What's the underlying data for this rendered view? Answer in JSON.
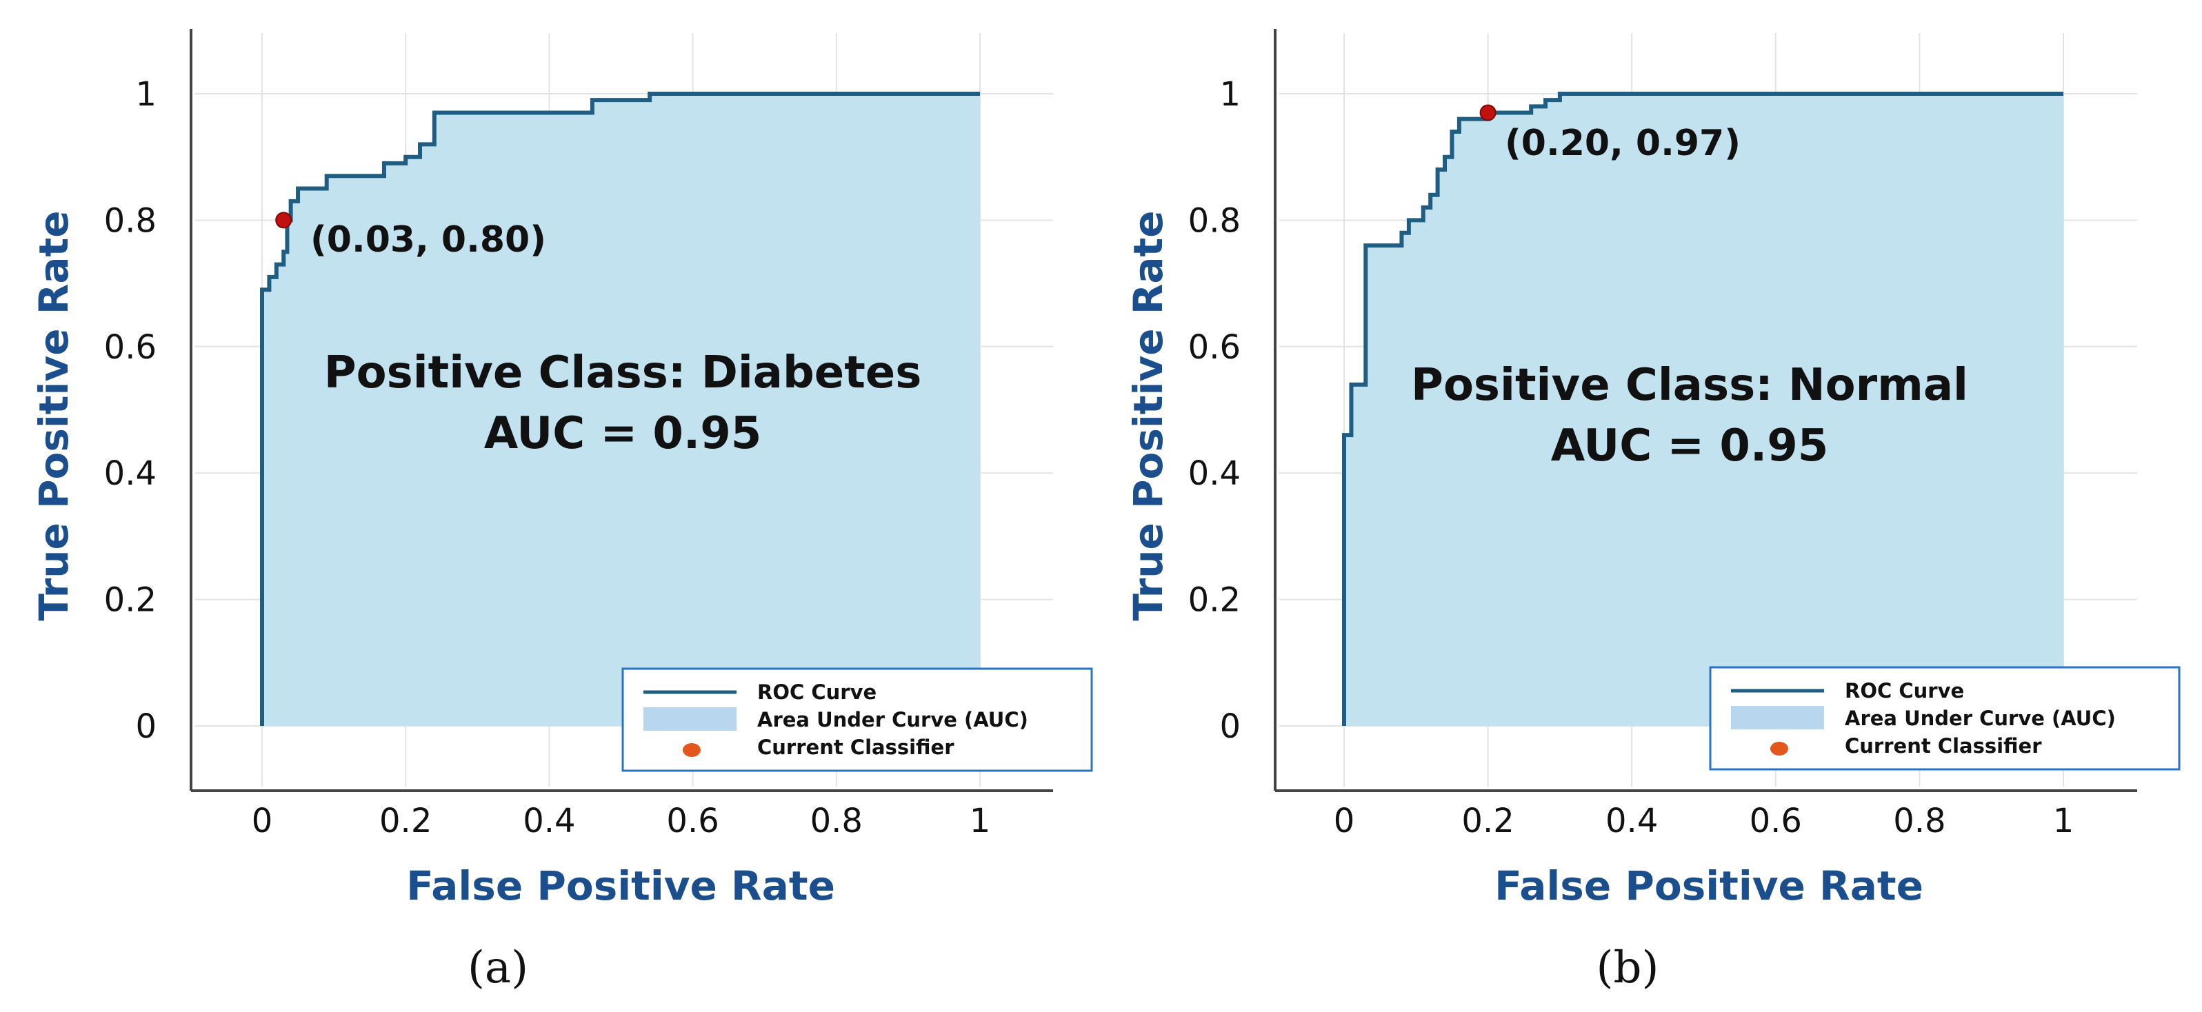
{
  "colors": {
    "curve": "#1f5e82",
    "fill": "#c3e2ef",
    "point": "#c0110e",
    "axis_label": "#1b4e8c",
    "legend_border": "#2a74c4",
    "legend_fill_swatch": "#b8d7ee",
    "legend_point": "#e4571c"
  },
  "legend": {
    "roc": "ROC Curve",
    "auc": "Area Under Curve (AUC)",
    "classifier": "Current Classifier"
  },
  "chart_data": [
    {
      "type": "area",
      "panel": "(a)",
      "title": "Positive Class: Diabetes",
      "auc_label": "AUC = 0.95",
      "xlabel": "False Positive Rate",
      "ylabel": "True Positive Rate",
      "xlim": [
        -0.1,
        1.1
      ],
      "ylim": [
        -0.1,
        1.1
      ],
      "xticks": [
        0,
        0.2,
        0.4,
        0.6,
        0.8,
        1
      ],
      "xtick_labels": [
        "0",
        "0.2",
        "0.4",
        "0.6",
        "0.8",
        "1"
      ],
      "yticks": [
        0,
        0.2,
        0.4,
        0.6,
        0.8,
        1
      ],
      "ytick_labels": [
        "0",
        "0.2",
        "0.4",
        "0.6",
        "0.8",
        "1"
      ],
      "series": [
        {
          "name": "ROC Curve",
          "x": [
            0,
            0,
            0.01,
            0.01,
            0.02,
            0.02,
            0.03,
            0.03,
            0.035,
            0.035,
            0.04,
            0.04,
            0.05,
            0.05,
            0.09,
            0.09,
            0.13,
            0.13,
            0.17,
            0.17,
            0.2,
            0.2,
            0.22,
            0.22,
            0.24,
            0.24,
            0.46,
            0.46,
            0.54,
            0.54,
            1
          ],
          "y": [
            0,
            0.69,
            0.69,
            0.71,
            0.71,
            0.73,
            0.73,
            0.75,
            0.75,
            0.8,
            0.8,
            0.83,
            0.83,
            0.85,
            0.85,
            0.87,
            0.87,
            0.87,
            0.87,
            0.89,
            0.89,
            0.9,
            0.9,
            0.92,
            0.92,
            0.97,
            0.97,
            0.99,
            0.99,
            1.0,
            1.0
          ]
        }
      ],
      "current_classifier": {
        "x": 0.03,
        "y": 0.8
      },
      "annotation": "(0.03, 0.80)"
    },
    {
      "type": "area",
      "panel": "(b)",
      "title": "Positive Class: Normal",
      "auc_label": "AUC = 0.95",
      "xlabel": "False Positive Rate",
      "ylabel": "True Positive Rate",
      "xlim": [
        -0.1,
        1.1
      ],
      "ylim": [
        -0.1,
        1.1
      ],
      "xticks": [
        0,
        0.2,
        0.4,
        0.6,
        0.8,
        1
      ],
      "xtick_labels": [
        "0",
        "0.2",
        "0.4",
        "0.6",
        "0.8",
        "1"
      ],
      "yticks": [
        0,
        0.2,
        0.4,
        0.6,
        0.8,
        1
      ],
      "ytick_labels": [
        "0",
        "0.2",
        "0.4",
        "0.6",
        "0.8",
        "1"
      ],
      "series": [
        {
          "name": "ROC Curve",
          "x": [
            0,
            0,
            0.01,
            0.01,
            0.03,
            0.03,
            0.08,
            0.08,
            0.09,
            0.09,
            0.11,
            0.11,
            0.12,
            0.12,
            0.13,
            0.13,
            0.14,
            0.14,
            0.15,
            0.15,
            0.16,
            0.16,
            0.2,
            0.2,
            0.26,
            0.26,
            0.28,
            0.28,
            0.3,
            0.3,
            1
          ],
          "y": [
            0,
            0.46,
            0.46,
            0.54,
            0.54,
            0.76,
            0.76,
            0.78,
            0.78,
            0.8,
            0.8,
            0.82,
            0.82,
            0.84,
            0.84,
            0.88,
            0.88,
            0.9,
            0.9,
            0.94,
            0.94,
            0.96,
            0.96,
            0.97,
            0.97,
            0.98,
            0.98,
            0.99,
            0.99,
            1.0,
            1.0
          ]
        }
      ],
      "current_classifier": {
        "x": 0.2,
        "y": 0.97
      },
      "annotation": "(0.20, 0.97)"
    }
  ]
}
